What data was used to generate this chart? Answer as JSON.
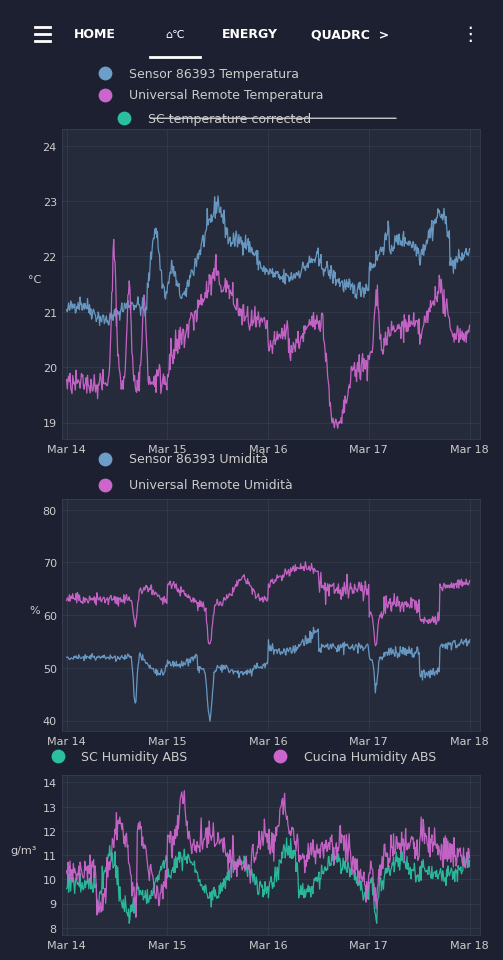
{
  "bg_color": "#1c2030",
  "plot_bg_color": "#252b3a",
  "text_color": "#cccccc",
  "grid_color": "#3a4255",
  "navbar_bg": "#1a2235",
  "divider_color": "#3a4255",
  "chart1": {
    "legend": [
      {
        "label": "Sensor 86393 Temperatura",
        "color": "#6b9ec8",
        "strikethrough": false
      },
      {
        "label": "Universal Remote Temperatura",
        "color": "#cc66cc",
        "strikethrough": false
      },
      {
        "label": "SC temperature corrected",
        "color": "#2bbfa0",
        "strikethrough": true
      }
    ],
    "ylabel": "°C",
    "yticks": [
      19,
      20,
      21,
      22,
      23,
      24
    ],
    "ylim": [
      18.7,
      24.3
    ],
    "sensor_color": "#6b9ec8",
    "remote_color": "#cc66cc"
  },
  "chart2": {
    "legend": [
      {
        "label": "Sensor 86393 Umidità",
        "color": "#6b9ec8"
      },
      {
        "label": "Universal Remote Umidità",
        "color": "#cc66cc"
      }
    ],
    "ylabel": "%",
    "yticks": [
      40,
      50,
      60,
      70,
      80
    ],
    "ylim": [
      38,
      82
    ],
    "sensor_color": "#6b9ec8",
    "remote_color": "#cc66cc"
  },
  "chart3": {
    "legend": [
      {
        "label": "SC Humidity ABS",
        "color": "#2bbfa0"
      },
      {
        "label": "Cucina Humidity ABS",
        "color": "#cc66cc"
      }
    ],
    "ylabel": "g/m³",
    "yticks": [
      8,
      9,
      10,
      11,
      12,
      13,
      14
    ],
    "ylim": [
      7.7,
      14.3
    ],
    "sc_color": "#2bbfa0",
    "cucina_color": "#cc66cc"
  },
  "xtick_labels": [
    "Mar 14",
    "Mar 15",
    "Mar 16",
    "Mar 17",
    "Mar 18"
  ]
}
